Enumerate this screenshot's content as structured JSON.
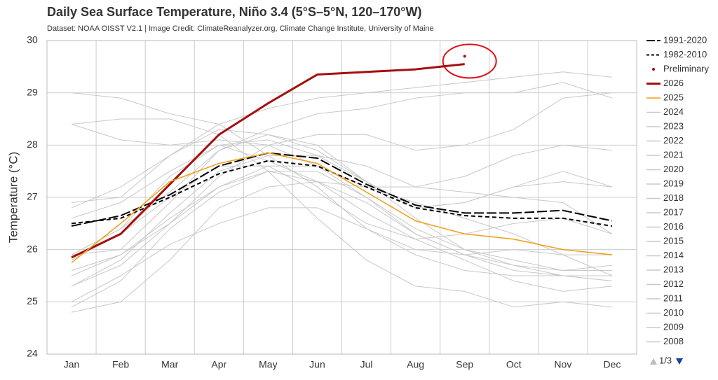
{
  "chart_data": {
    "type": "line",
    "title": "Daily Sea Surface Temperature, Niño 3.4 (5°S–5°N, 120–170°W)",
    "subtitle": "Dataset: NOAA OISST V2.1 | Image Credit: ClimateReanalyzer.org, Climate Change Institute, University of Maine",
    "y_label": "Temperature (°C)",
    "categories": [
      "Jan",
      "Feb",
      "Mar",
      "Apr",
      "May",
      "Jun",
      "Jul",
      "Aug",
      "Sep",
      "Oct",
      "Nov",
      "Dec"
    ],
    "ylim": [
      24,
      30
    ],
    "yticks": [
      24,
      25,
      26,
      27,
      28,
      29,
      30
    ],
    "grid": true,
    "legend_page": "1/3",
    "series": [
      {
        "name": "1991-2020",
        "color": "#000000",
        "line_style": "long-dash",
        "line_width": 2,
        "values": [
          26.45,
          26.65,
          27.05,
          27.6,
          27.85,
          27.75,
          27.25,
          26.85,
          26.7,
          26.7,
          26.75,
          26.55
        ]
      },
      {
        "name": "1982-2010",
        "color": "#000000",
        "line_style": "dash",
        "line_width": 2,
        "values": [
          26.5,
          26.6,
          27.0,
          27.45,
          27.7,
          27.6,
          27.2,
          26.8,
          26.65,
          26.6,
          26.6,
          26.45
        ]
      },
      {
        "name": "Preliminary",
        "color": "#a50f0f",
        "line_style": "markers",
        "values": [
          null,
          null,
          null,
          null,
          null,
          null,
          null,
          null,
          29.7,
          null,
          null,
          null
        ]
      },
      {
        "name": "2026",
        "color": "#a50f0f",
        "line_width": 3,
        "values": [
          25.85,
          26.3,
          27.25,
          28.2,
          28.8,
          29.35,
          29.4,
          29.45,
          29.55,
          null,
          null,
          null
        ]
      },
      {
        "name": "2025",
        "color": "#f39c12",
        "line_width": 1.5,
        "values": [
          25.75,
          26.5,
          27.3,
          27.65,
          27.85,
          27.65,
          27.1,
          26.55,
          26.3,
          26.2,
          26.0,
          25.9
        ]
      },
      {
        "name": "2024",
        "color": "#c8c8c8",
        "values": [
          28.4,
          28.1,
          28.0,
          28.1,
          28.0,
          27.6,
          27.0,
          26.4,
          26.0,
          25.8,
          25.6,
          25.6
        ]
      },
      {
        "name": "2023",
        "color": "#c8c8c8",
        "values": [
          25.9,
          26.4,
          27.1,
          27.9,
          28.3,
          28.6,
          28.7,
          28.9,
          29.0,
          29.0,
          29.2,
          28.9
        ]
      },
      {
        "name": "2022",
        "color": "#c8c8c8",
        "values": [
          25.0,
          25.5,
          26.1,
          26.5,
          26.8,
          26.8,
          26.4,
          25.9,
          25.6,
          25.5,
          25.5,
          25.5
        ]
      },
      {
        "name": "2021",
        "color": "#c8c8c8",
        "values": [
          25.3,
          25.7,
          26.5,
          27.2,
          27.5,
          27.3,
          26.9,
          26.3,
          25.9,
          25.6,
          25.5,
          25.4
        ]
      },
      {
        "name": "2020",
        "color": "#c8c8c8",
        "values": [
          26.6,
          26.9,
          27.5,
          28.0,
          27.7,
          27.3,
          26.7,
          26.2,
          25.8,
          25.4,
          25.2,
          25.3
        ]
      },
      {
        "name": "2019",
        "color": "#c8c8c8",
        "values": [
          26.9,
          27.0,
          27.8,
          28.3,
          28.2,
          27.9,
          27.3,
          26.8,
          26.9,
          27.2,
          27.3,
          27.2
        ]
      },
      {
        "name": "2018",
        "color": "#c8c8c8",
        "values": [
          25.5,
          25.9,
          26.6,
          27.2,
          27.6,
          27.6,
          27.2,
          27.2,
          27.4,
          27.8,
          28.0,
          27.9
        ]
      },
      {
        "name": "2017",
        "color": "#c8c8c8",
        "values": [
          25.9,
          26.4,
          27.4,
          28.0,
          28.1,
          27.8,
          27.3,
          26.6,
          26.0,
          25.7,
          25.6,
          25.7
        ]
      },
      {
        "name": "2016",
        "color": "#c8c8c8",
        "values": [
          29.0,
          28.9,
          28.6,
          28.4,
          27.8,
          27.2,
          26.4,
          26.0,
          25.9,
          26.0,
          25.9,
          25.9
        ]
      },
      {
        "name": "2015",
        "color": "#c8c8c8",
        "values": [
          26.8,
          27.2,
          27.8,
          28.4,
          28.7,
          28.9,
          29.0,
          29.1,
          29.2,
          29.3,
          29.4,
          29.3
        ]
      },
      {
        "name": "2014",
        "color": "#c8c8c8",
        "values": [
          25.9,
          26.0,
          26.9,
          27.9,
          28.2,
          28.0,
          27.3,
          26.8,
          26.9,
          27.2,
          27.5,
          27.2
        ]
      },
      {
        "name": "2013",
        "color": "#c8c8c8",
        "values": [
          25.8,
          26.3,
          27.0,
          27.6,
          27.6,
          27.1,
          26.5,
          26.2,
          26.3,
          26.5,
          26.6,
          26.3
        ]
      },
      {
        "name": "2012",
        "color": "#c8c8c8",
        "values": [
          25.3,
          25.8,
          26.7,
          27.5,
          27.8,
          27.8,
          27.6,
          27.2,
          27.1,
          27.0,
          26.9,
          26.3
        ]
      },
      {
        "name": "2011",
        "color": "#c8c8c8",
        "values": [
          24.9,
          25.4,
          26.4,
          27.1,
          27.5,
          27.5,
          27.0,
          26.3,
          25.9,
          25.7,
          25.5,
          25.4
        ]
      },
      {
        "name": "2010",
        "color": "#c8c8c8",
        "values": [
          28.4,
          28.5,
          28.5,
          28.2,
          27.5,
          26.6,
          25.8,
          25.3,
          25.2,
          24.9,
          25.0,
          24.9
        ]
      },
      {
        "name": "2009",
        "color": "#c8c8c8",
        "values": [
          25.6,
          25.9,
          26.5,
          27.4,
          28.0,
          28.2,
          28.2,
          27.9,
          28.0,
          28.3,
          28.9,
          29.0
        ]
      },
      {
        "name": "2008",
        "color": "#c8c8c8",
        "values": [
          24.8,
          25.0,
          25.8,
          26.8,
          27.2,
          27.3,
          27.2,
          26.9,
          26.6,
          26.3,
          25.9,
          25.5
        ]
      }
    ]
  }
}
